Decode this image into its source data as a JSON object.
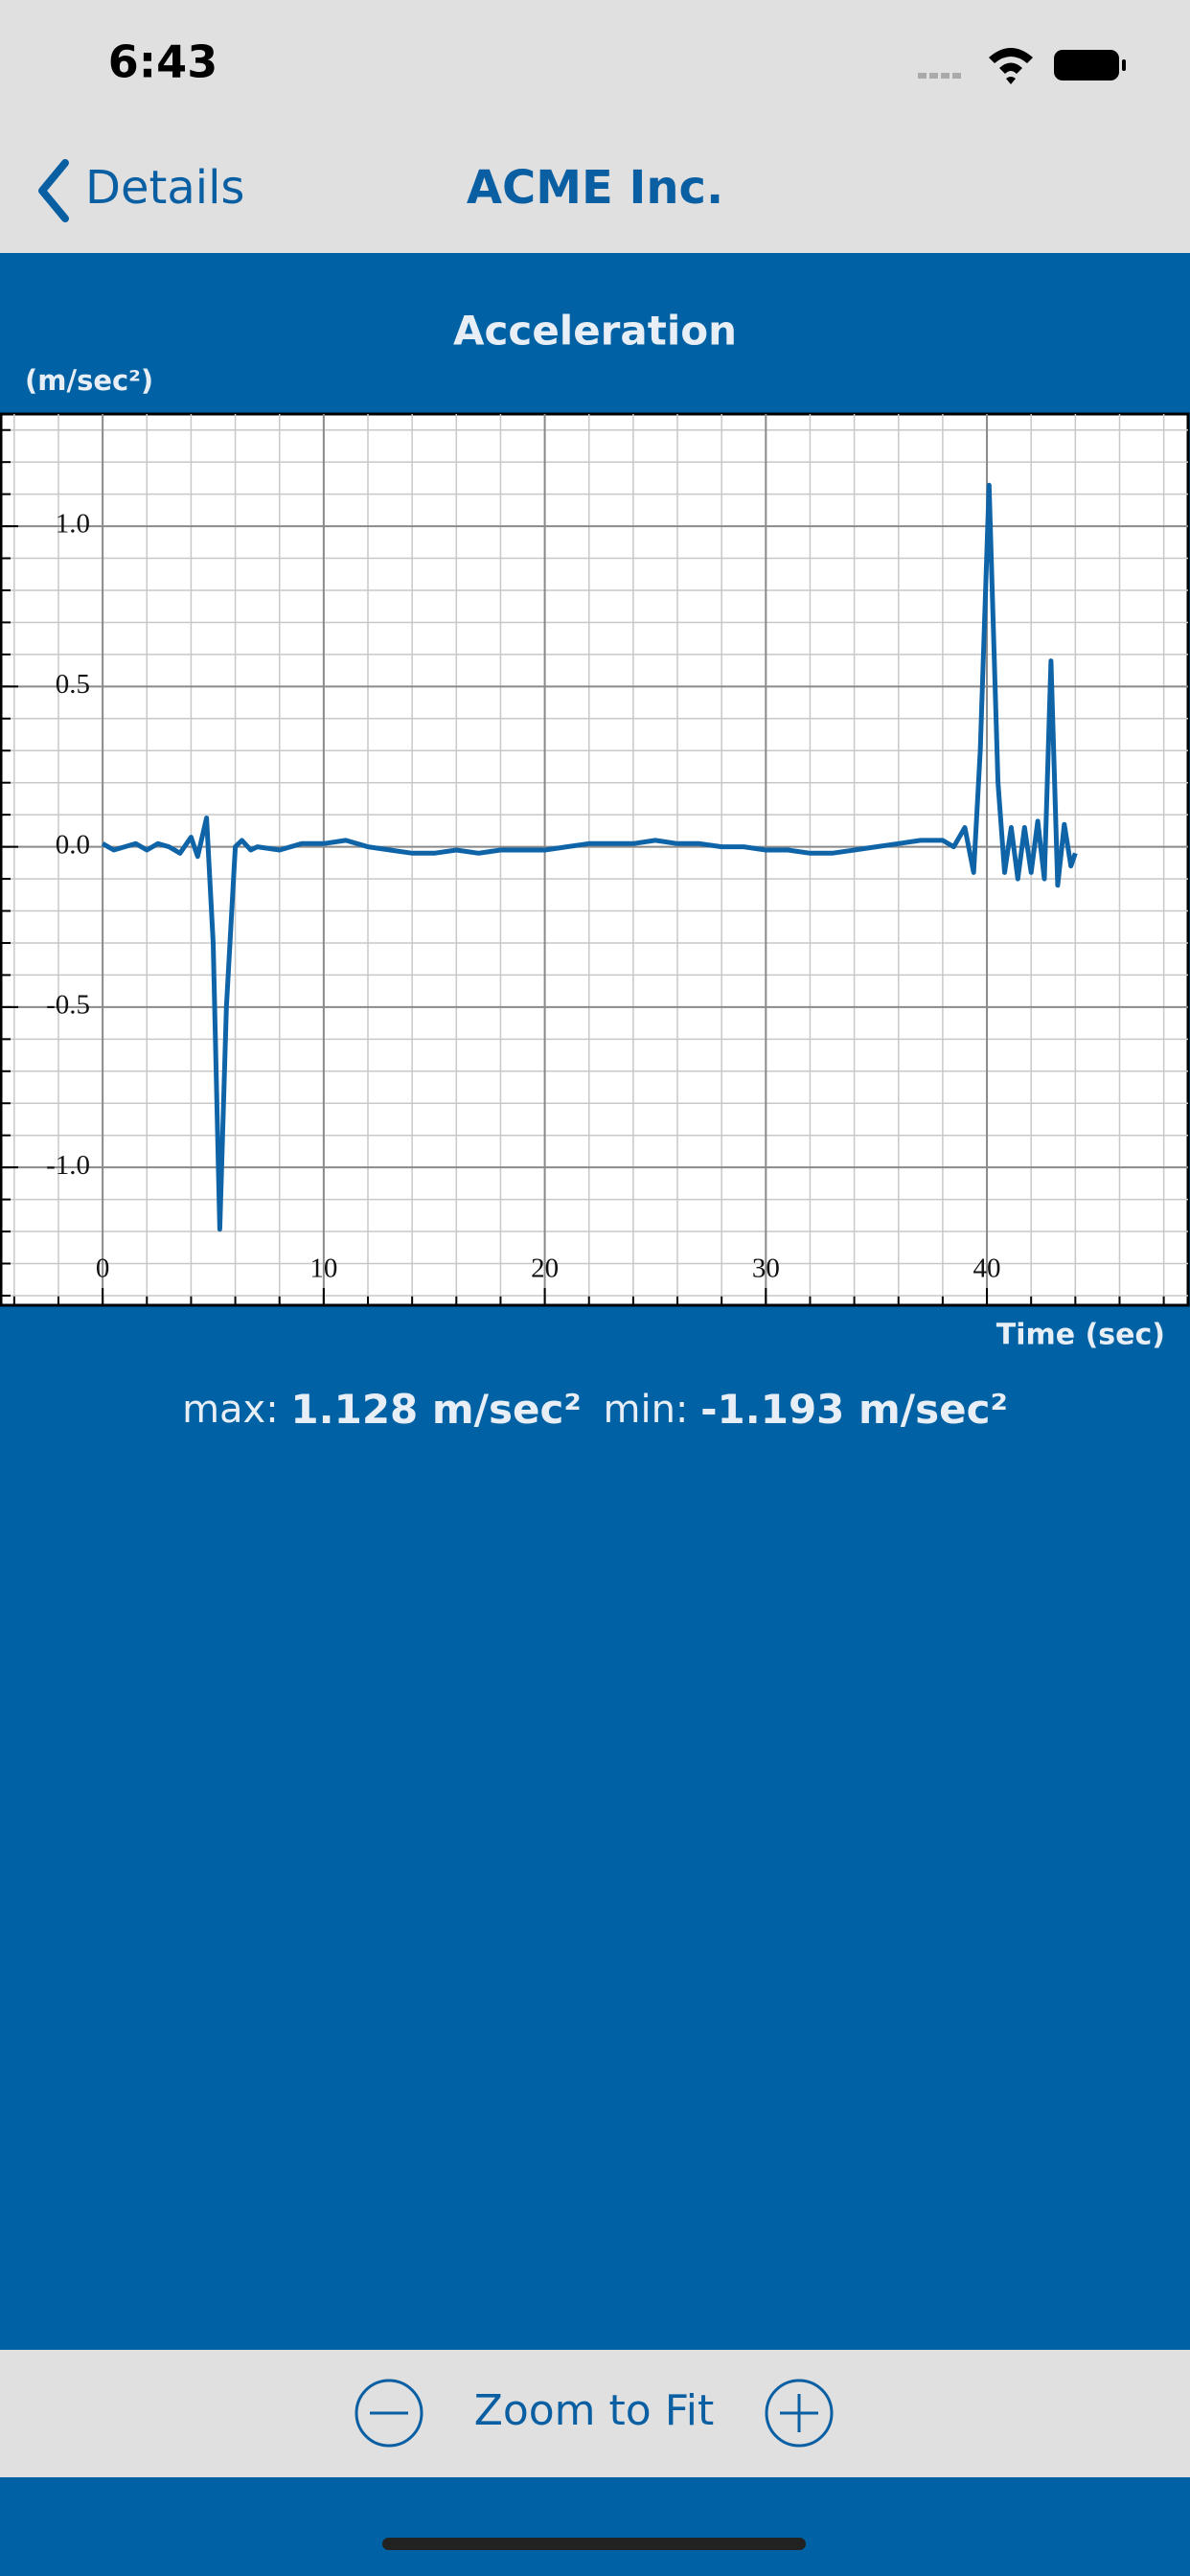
{
  "status_bar": {
    "time": "6:43"
  },
  "nav": {
    "back": "Details",
    "title": "ACME Inc."
  },
  "stats": {
    "max_label": "max:",
    "max": "1.128 m/sec²",
    "min_label": "min:",
    "min": "-1.193 m/sec²"
  },
  "toolbar": {
    "zoom": "Zoom to Fit"
  },
  "chart_data": {
    "type": "line",
    "title": "Acceleration",
    "y_label": "(m/sec²)",
    "x_label": "Time (sec)",
    "x": [
      0,
      0.5,
      1,
      1.5,
      2,
      2.5,
      3,
      3.5,
      4,
      4.3,
      4.7,
      5.0,
      5.3,
      5.6,
      6.0,
      6.3,
      6.7,
      7,
      8,
      9,
      10,
      11,
      12,
      13,
      14,
      15,
      16,
      17,
      18,
      19,
      20,
      21,
      22,
      23,
      24,
      25,
      26,
      27,
      28,
      29,
      30,
      31,
      32,
      33,
      34,
      35,
      36,
      37,
      38,
      38.5,
      39,
      39.4,
      39.7,
      40.1,
      40.5,
      40.8,
      41.1,
      41.4,
      41.7,
      42,
      42.3,
      42.6,
      42.9,
      43.2,
      43.5,
      43.8,
      44
    ],
    "series": [
      {
        "color": "#0f64a8",
        "values": [
          0.01,
          -0.01,
          0.0,
          0.01,
          -0.01,
          0.01,
          0.0,
          -0.02,
          0.03,
          -0.03,
          0.09,
          -0.3,
          -1.193,
          -0.5,
          0.0,
          0.02,
          -0.01,
          0.0,
          -0.01,
          0.01,
          0.01,
          0.02,
          0.0,
          -0.01,
          -0.02,
          -0.02,
          -0.01,
          -0.02,
          -0.01,
          -0.01,
          -0.01,
          0.0,
          0.01,
          0.01,
          0.01,
          0.02,
          0.01,
          0.01,
          0.0,
          0.0,
          -0.01,
          -0.01,
          -0.02,
          -0.02,
          -0.01,
          0.0,
          0.01,
          0.02,
          0.02,
          0.0,
          0.06,
          -0.08,
          0.3,
          1.128,
          0.2,
          -0.08,
          0.06,
          -0.1,
          0.06,
          -0.08,
          0.08,
          -0.1,
          0.58,
          -0.12,
          0.07,
          -0.06,
          -0.02
        ]
      }
    ],
    "xlim": [
      -4.6,
      49.1
    ],
    "ylim": [
      -1.43,
      1.35
    ],
    "xticks": [
      0,
      10,
      20,
      30,
      40
    ],
    "yticks": [
      {
        "value": -1,
        "label": "-1.0"
      },
      {
        "value": -0.5,
        "label": "-0.5"
      },
      {
        "value": 0,
        "label": "0.0"
      },
      {
        "value": 0.5,
        "label": "0.5"
      },
      {
        "value": 1,
        "label": "1.0"
      }
    ],
    "grid": true,
    "minor_grid": {
      "x": 2,
      "y": 0.1
    }
  }
}
